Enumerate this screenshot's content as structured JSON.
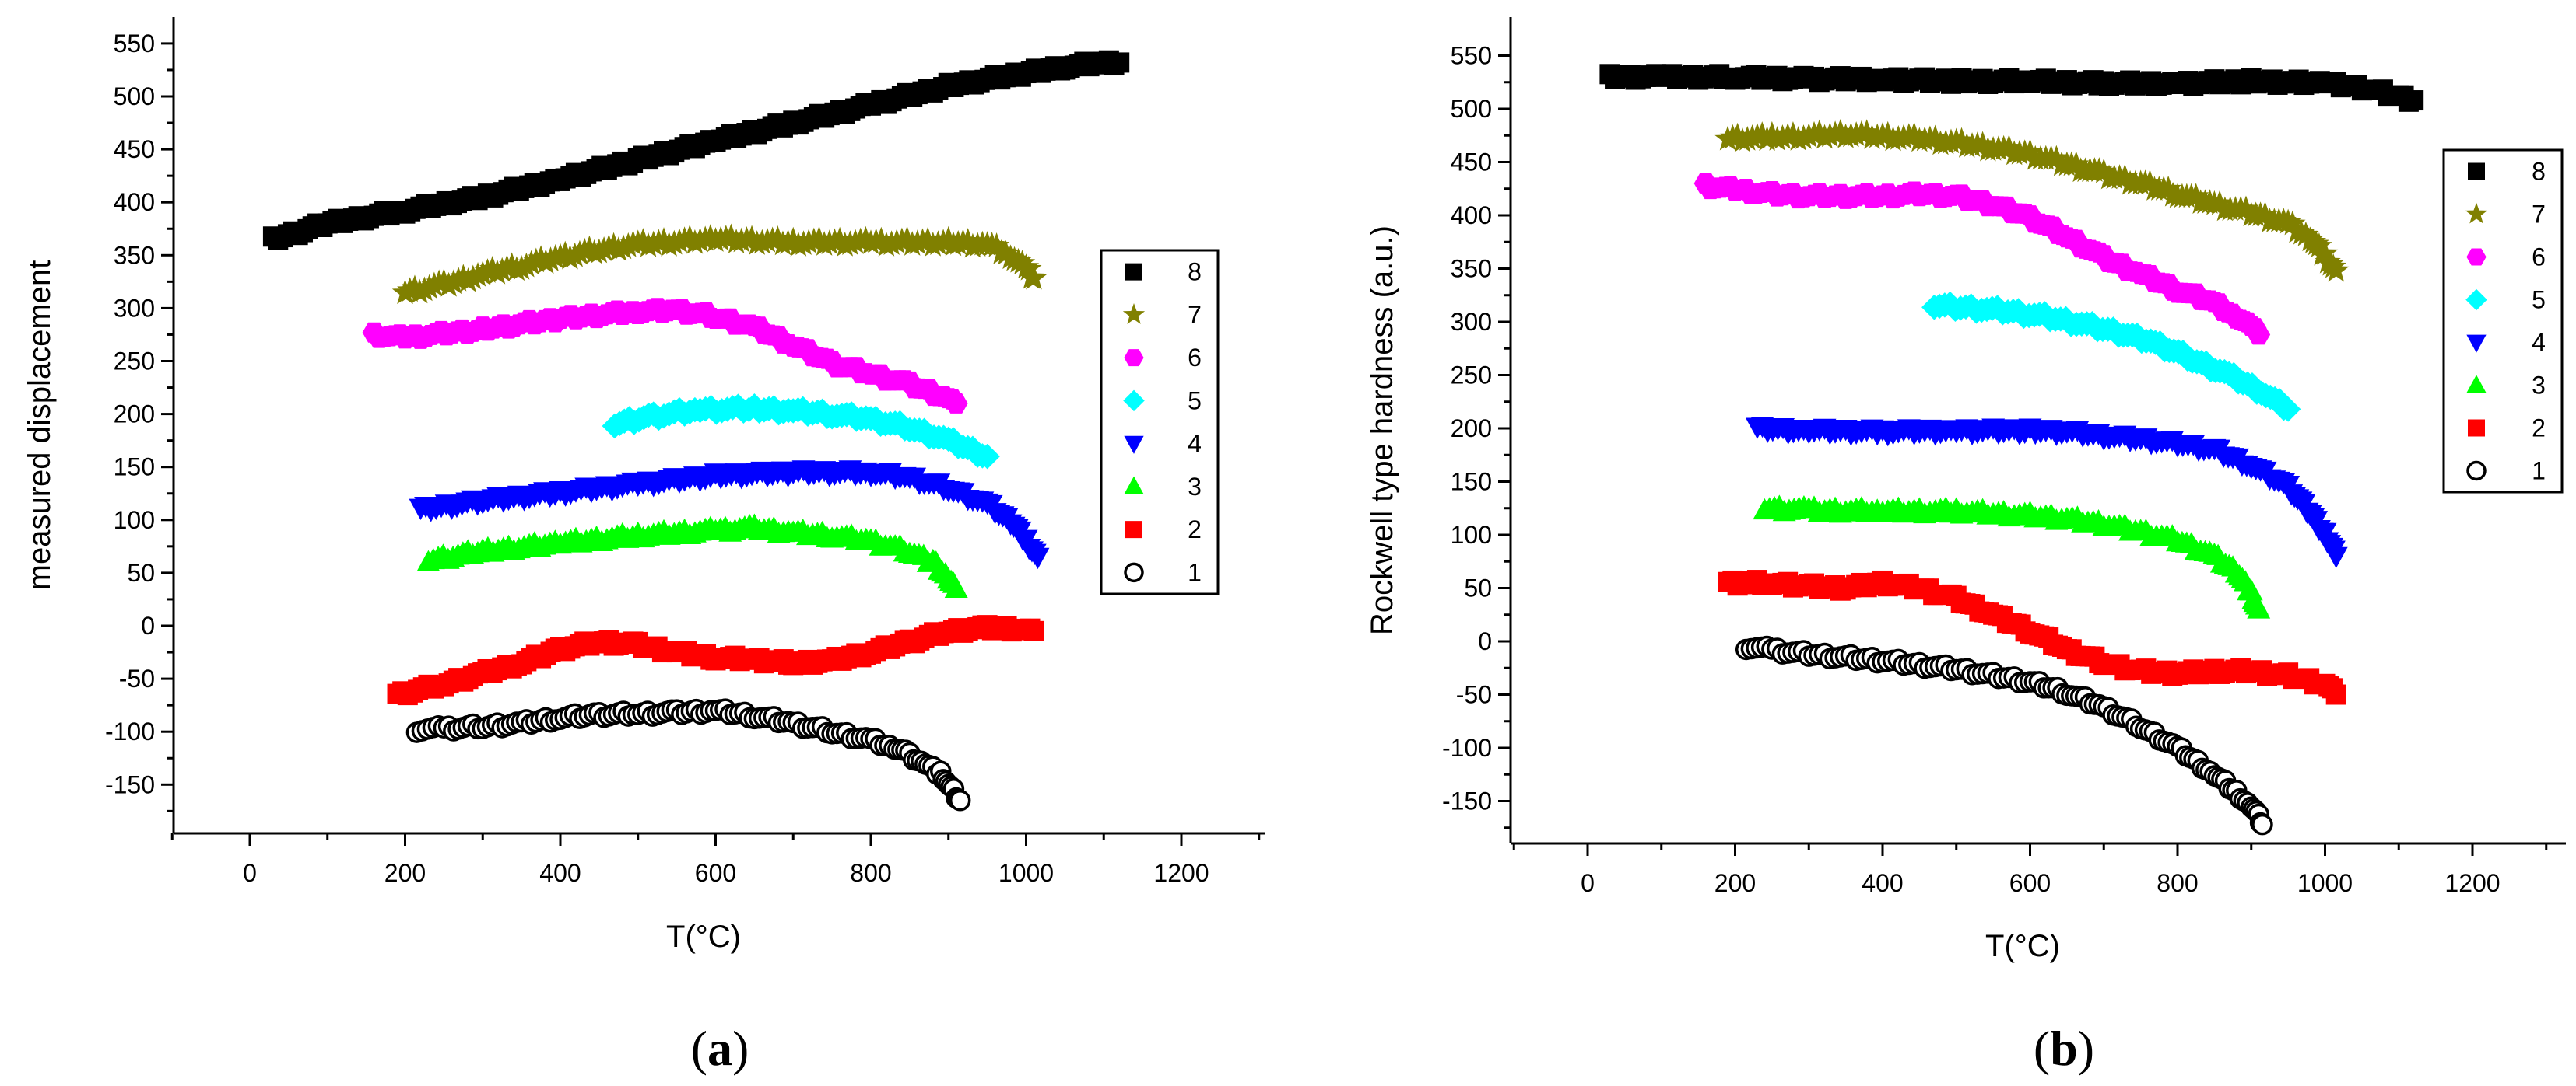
{
  "chart_data": [
    {
      "type": "scatter",
      "panel_label": "(a)",
      "panel_letter": "a",
      "xlabel": "T(°C)",
      "ylabel": "measured displacement",
      "xlim": [
        -100,
        1300
      ],
      "ylim": [
        -190,
        570
      ],
      "xticks": [
        "0",
        "200",
        "400",
        "600",
        "800",
        "1000",
        "1200"
      ],
      "yticks": [
        "-150",
        "-100",
        "-50",
        "0",
        "50",
        "100",
        "150",
        "200",
        "250",
        "300",
        "350",
        "400",
        "450",
        "500",
        "550"
      ],
      "legend": {
        "placement": "right",
        "entries": [
          "8",
          "7",
          "6",
          "5",
          "4",
          "3",
          "2",
          "1"
        ]
      },
      "series": [
        {
          "name": "8",
          "marker": "square",
          "color": "#000000",
          "x": [
            30,
            100,
            200,
            300,
            400,
            500,
            600,
            700,
            800,
            900,
            1000,
            1050,
            1100,
            1120
          ],
          "y": [
            365,
            380,
            392,
            405,
            422,
            440,
            458,
            475,
            492,
            510,
            522,
            528,
            532,
            532
          ]
        },
        {
          "name": "7",
          "marker": "star",
          "color": "#808000",
          "x": [
            200,
            250,
            300,
            350,
            400,
            450,
            500,
            600,
            700,
            800,
            900,
            950,
            980,
            1000,
            1010
          ],
          "y": [
            315,
            322,
            332,
            340,
            348,
            355,
            360,
            365,
            362,
            362,
            362,
            360,
            350,
            338,
            328
          ]
        },
        {
          "name": "6",
          "marker": "hexagon",
          "color": "#ff00ff",
          "x": [
            160,
            200,
            300,
            400,
            500,
            550,
            600,
            650,
            700,
            750,
            800,
            850,
            900,
            910
          ],
          "y": [
            275,
            272,
            280,
            290,
            297,
            298,
            292,
            282,
            265,
            248,
            238,
            228,
            215,
            210
          ]
        },
        {
          "name": "5",
          "marker": "diamond",
          "color": "#00ffff",
          "x": [
            470,
            520,
            580,
            650,
            700,
            750,
            800,
            850,
            900,
            950
          ],
          "y": [
            190,
            198,
            204,
            205,
            203,
            200,
            195,
            187,
            175,
            160
          ]
        },
        {
          "name": "4",
          "marker": "triangle-down",
          "color": "#0000ff",
          "x": [
            220,
            300,
            400,
            500,
            600,
            700,
            800,
            850,
            900,
            950,
            980,
            1000,
            1015
          ],
          "y": [
            110,
            118,
            126,
            134,
            142,
            145,
            145,
            140,
            130,
            115,
            98,
            80,
            65
          ]
        },
        {
          "name": "3",
          "marker": "triangle-up",
          "color": "#00ff00",
          "x": [
            230,
            300,
            400,
            500,
            600,
            650,
            700,
            750,
            800,
            850,
            880,
            900,
            910
          ],
          "y": [
            62,
            70,
            78,
            85,
            90,
            92,
            88,
            85,
            80,
            70,
            60,
            45,
            35
          ]
        },
        {
          "name": "2",
          "marker": "square",
          "color": "#ff0000",
          "x": [
            190,
            250,
            300,
            350,
            400,
            450,
            500,
            550,
            600,
            650,
            700,
            750,
            800,
            850,
            900,
            950,
            1000,
            1010
          ],
          "y": [
            -65,
            -55,
            -45,
            -35,
            -22,
            -15,
            -18,
            -25,
            -30,
            -32,
            -35,
            -33,
            -25,
            -15,
            -5,
            -2,
            -3,
            -5
          ]
        },
        {
          "name": "1",
          "marker": "circle-open",
          "color": "#000000",
          "x": [
            215,
            250,
            300,
            350,
            400,
            450,
            500,
            550,
            600,
            650,
            700,
            750,
            800,
            830,
            850,
            870,
            890,
            900,
            910,
            915
          ],
          "y": [
            -98,
            -97,
            -95,
            -92,
            -87,
            -84,
            -83,
            -82,
            -80,
            -85,
            -92,
            -100,
            -108,
            -115,
            -122,
            -130,
            -140,
            -150,
            -160,
            -165
          ]
        }
      ]
    },
    {
      "type": "scatter",
      "panel_label": "(b)",
      "panel_letter": "b",
      "xlabel": "T(°C)",
      "ylabel": "Rockwell type hardness (a.u.)",
      "xlim": [
        -100,
        1300
      ],
      "ylim": [
        -190,
        560
      ],
      "xticks": [
        "0",
        "200",
        "400",
        "600",
        "800",
        "1000",
        "1200"
      ],
      "yticks": [
        "-150",
        "-100",
        "-50",
        "0",
        "50",
        "100",
        "150",
        "200",
        "250",
        "300",
        "350",
        "400",
        "450",
        "500",
        "550"
      ],
      "legend": {
        "placement": "top-right",
        "entries": [
          "8",
          "7",
          "6",
          "5",
          "4",
          "3",
          "2",
          "1"
        ]
      },
      "series": [
        {
          "name": "8",
          "marker": "square",
          "color": "#000000",
          "x": [
            30,
            100,
            200,
            300,
            400,
            500,
            600,
            700,
            800,
            900,
            1000,
            1050,
            1100,
            1120
          ],
          "y": [
            530,
            530,
            530,
            528,
            528,
            526,
            526,
            524,
            524,
            526,
            524,
            520,
            512,
            508
          ]
        },
        {
          "name": "7",
          "marker": "star",
          "color": "#808000",
          "x": [
            190,
            250,
            300,
            350,
            400,
            450,
            500,
            550,
            600,
            650,
            700,
            750,
            800,
            850,
            900,
            950,
            980,
            1000,
            1015
          ],
          "y": [
            472,
            473,
            474,
            476,
            474,
            472,
            468,
            463,
            457,
            448,
            438,
            430,
            420,
            410,
            402,
            392,
            378,
            362,
            348
          ]
        },
        {
          "name": "6",
          "marker": "hexagon",
          "color": "#ff00ff",
          "x": [
            160,
            200,
            250,
            300,
            350,
            400,
            450,
            500,
            550,
            600,
            650,
            700,
            750,
            800,
            850,
            880,
            900,
            910
          ],
          "y": [
            428,
            424,
            420,
            418,
            418,
            418,
            420,
            418,
            410,
            398,
            380,
            360,
            345,
            330,
            318,
            305,
            295,
            288
          ]
        },
        {
          "name": "5",
          "marker": "diamond",
          "color": "#00ffff",
          "x": [
            470,
            520,
            570,
            620,
            670,
            720,
            770,
            820,
            870,
            920,
            950
          ],
          "y": [
            315,
            313,
            310,
            305,
            298,
            290,
            280,
            265,
            250,
            232,
            218
          ]
        },
        {
          "name": "4",
          "marker": "triangle-down",
          "color": "#0000ff",
          "x": [
            230,
            300,
            400,
            500,
            600,
            650,
            700,
            750,
            800,
            850,
            900,
            950,
            980,
            1000,
            1015
          ],
          "y": [
            200,
            198,
            197,
            198,
            198,
            197,
            193,
            190,
            186,
            180,
            165,
            145,
            120,
            100,
            80
          ]
        },
        {
          "name": "3",
          "marker": "triangle-up",
          "color": "#00ff00",
          "x": [
            240,
            300,
            400,
            500,
            550,
            600,
            650,
            700,
            750,
            800,
            850,
            880,
            900,
            910
          ],
          "y": [
            125,
            123,
            122,
            122,
            120,
            118,
            115,
            110,
            103,
            95,
            80,
            65,
            45,
            30
          ]
        },
        {
          "name": "2",
          "marker": "square",
          "color": "#ff0000",
          "x": [
            190,
            250,
            300,
            350,
            400,
            450,
            500,
            550,
            600,
            650,
            700,
            750,
            800,
            850,
            900,
            950,
            1000,
            1015
          ],
          "y": [
            55,
            55,
            52,
            50,
            55,
            50,
            40,
            25,
            10,
            -8,
            -20,
            -28,
            -30,
            -28,
            -28,
            -32,
            -40,
            -50
          ]
        },
        {
          "name": "1",
          "marker": "circle-open",
          "color": "#000000",
          "x": [
            215,
            250,
            300,
            350,
            400,
            450,
            500,
            550,
            600,
            650,
            700,
            750,
            800,
            850,
            880,
            900,
            910,
            915
          ],
          "y": [
            -5,
            -8,
            -12,
            -15,
            -18,
            -22,
            -26,
            -32,
            -38,
            -48,
            -62,
            -80,
            -100,
            -125,
            -142,
            -155,
            -165,
            -172
          ]
        }
      ]
    }
  ]
}
